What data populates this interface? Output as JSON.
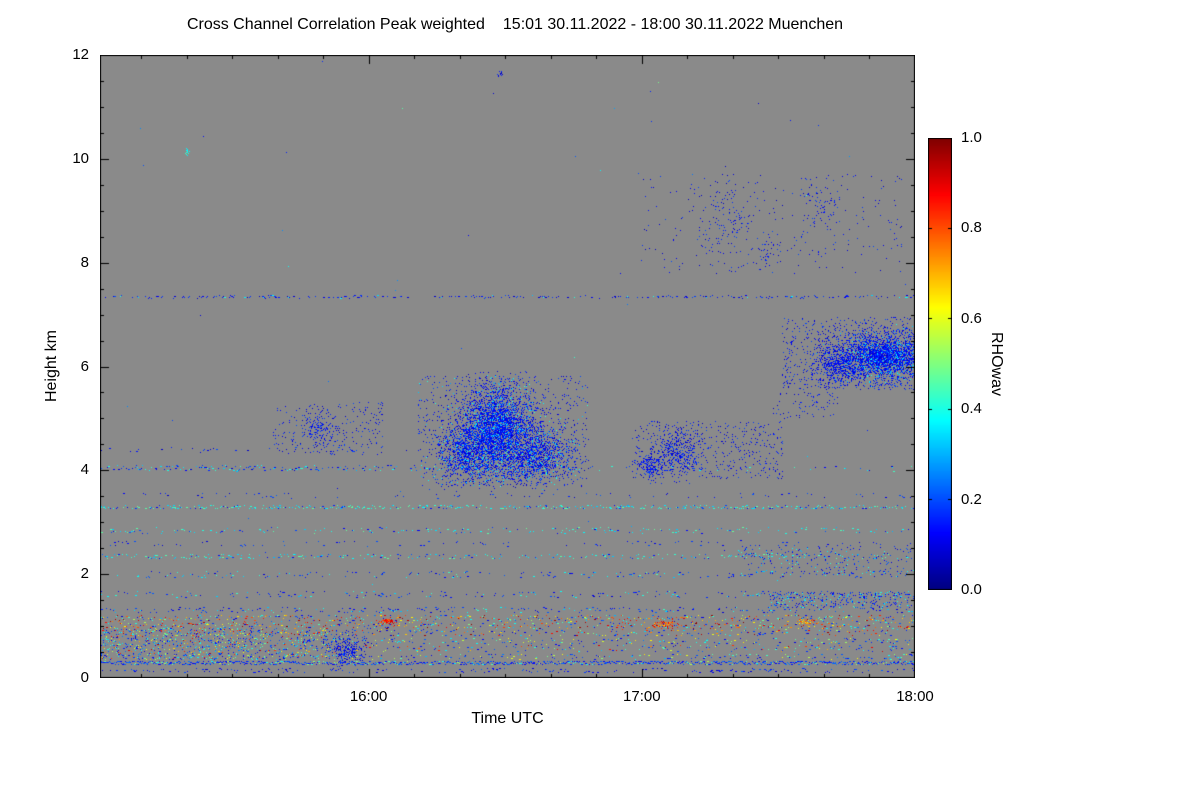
{
  "chart_data": {
    "type": "heatmap",
    "title": "Cross Channel Correlation Peak weighted",
    "subtitle": "15:01 30.11.2022 - 18:00 30.11.2022 Muenchen",
    "xlabel": "Time UTC",
    "ylabel": "Height km",
    "colorbar_label": "RHOwav",
    "colormap": "jet",
    "background_color": "#8a8a8a",
    "time_start": "15:01",
    "time_end": "18:00",
    "x_total_minutes": 179,
    "x_major_ticks": [
      {
        "label": "16:00",
        "minute": 59
      },
      {
        "label": "17:00",
        "minute": 119
      },
      {
        "label": "18:00",
        "minute": 179
      }
    ],
    "x_minor_step_minutes": 10,
    "y_min_km": 0,
    "y_max_km": 12,
    "y_major_ticks": [
      0,
      2,
      4,
      6,
      8,
      10,
      12
    ],
    "y_minor_step_km": 0.5,
    "colorbar_min": 0.0,
    "colorbar_max": 1.0,
    "colorbar_ticks": [
      {
        "label": "1.0",
        "value": 1.0
      },
      {
        "label": "0.8",
        "value": 0.8
      },
      {
        "label": "0.6",
        "value": 0.6
      },
      {
        "label": "0.4",
        "value": 0.4
      },
      {
        "label": "0.2",
        "value": 0.2
      },
      {
        "label": "0.0",
        "value": 0.0
      }
    ],
    "seed": 1337,
    "speckle": {
      "density": 0.00012,
      "values": [
        [
          0.08,
          0.3,
          0.8
        ],
        [
          0.3,
          0.5,
          0.2
        ]
      ]
    },
    "streaks": [
      {
        "h": 0.15,
        "jitter": 0.04,
        "density": 0.22,
        "values": [
          [
            0.07,
            0.22,
            1
          ]
        ]
      },
      {
        "h": 0.3,
        "jitter": 0.035,
        "density": 0.95,
        "values": [
          [
            0.1,
            0.25,
            0.85
          ],
          [
            0.35,
            0.55,
            0.15
          ]
        ]
      },
      {
        "h": 0.42,
        "jitter": 0.05,
        "density": 0.3,
        "values": [
          [
            0.08,
            0.25,
            0.5
          ],
          [
            0.3,
            0.5,
            0.3
          ],
          [
            0.5,
            0.65,
            0.2
          ]
        ]
      },
      {
        "h": 0.58,
        "jitter": 0.07,
        "density": 0.3,
        "values": [
          [
            0.08,
            0.25,
            0.55
          ],
          [
            0.3,
            0.5,
            0.2
          ],
          [
            0.55,
            0.95,
            0.25
          ]
        ]
      },
      {
        "h": 0.72,
        "jitter": 0.06,
        "density": 0.33,
        "values": [
          [
            0.08,
            0.25,
            0.5
          ],
          [
            0.3,
            0.5,
            0.3
          ],
          [
            0.5,
            0.65,
            0.2
          ]
        ]
      },
      {
        "h": 0.88,
        "jitter": 0.06,
        "density": 0.38,
        "values": [
          [
            0.08,
            0.25,
            0.45
          ],
          [
            0.3,
            0.55,
            0.25
          ],
          [
            0.6,
            0.98,
            0.3
          ]
        ]
      },
      {
        "h": 1.02,
        "jitter": 0.06,
        "density": 0.55,
        "values": [
          [
            0.62,
            1.0,
            0.5
          ],
          [
            0.08,
            0.25,
            0.25
          ],
          [
            0.3,
            0.55,
            0.25
          ]
        ]
      },
      {
        "h": 1.16,
        "jitter": 0.06,
        "density": 0.5,
        "values": [
          [
            0.62,
            1.0,
            0.45
          ],
          [
            0.08,
            0.25,
            0.3
          ],
          [
            0.3,
            0.55,
            0.25
          ]
        ]
      },
      {
        "h": 1.32,
        "jitter": 0.05,
        "density": 0.28,
        "values": [
          [
            0.08,
            0.22,
            0.7
          ],
          [
            0.3,
            0.45,
            0.3
          ]
        ]
      },
      {
        "h": 1.62,
        "jitter": 0.06,
        "density": 0.26,
        "values": [
          [
            0.08,
            0.22,
            0.7
          ],
          [
            0.3,
            0.45,
            0.3
          ]
        ]
      },
      {
        "h": 2.0,
        "jitter": 0.06,
        "density": 0.2,
        "values": [
          [
            0.08,
            0.22,
            0.7
          ],
          [
            0.3,
            0.45,
            0.3
          ]
        ]
      },
      {
        "h": 2.35,
        "jitter": 0.045,
        "density": 0.3,
        "values": [
          [
            0.3,
            0.48,
            0.8
          ],
          [
            0.1,
            0.22,
            0.2
          ]
        ]
      },
      {
        "h": 2.6,
        "jitter": 0.05,
        "density": 0.1,
        "values": [
          [
            0.07,
            0.22,
            1
          ]
        ]
      },
      {
        "h": 2.85,
        "jitter": 0.055,
        "density": 0.26,
        "values": [
          [
            0.3,
            0.48,
            0.75
          ],
          [
            0.1,
            0.22,
            0.25
          ]
        ]
      },
      {
        "h": 3.3,
        "jitter": 0.035,
        "density": 0.5,
        "values": [
          [
            0.3,
            0.48,
            0.8
          ],
          [
            0.1,
            0.22,
            0.2
          ]
        ]
      },
      {
        "h": 3.52,
        "jitter": 0.05,
        "density": 0.1,
        "values": [
          [
            0.07,
            0.22,
            1
          ]
        ]
      },
      {
        "h": 4.05,
        "jitter": 0.055,
        "density": 0.45,
        "t1": 74,
        "values": [
          [
            0.08,
            0.22,
            0.65
          ],
          [
            0.3,
            0.45,
            0.35
          ]
        ]
      },
      {
        "h": 4.05,
        "jitter": 0.055,
        "density": 0.1,
        "t0": 74,
        "values": [
          [
            0.08,
            0.22,
            0.7
          ],
          [
            0.3,
            0.45,
            0.3
          ]
        ]
      },
      {
        "h": 4.4,
        "jitter": 0.05,
        "density": 0.12,
        "t1": 60,
        "values": [
          [
            0.07,
            0.22,
            1
          ]
        ]
      },
      {
        "h": 7.35,
        "jitter": 0.025,
        "density": 0.28,
        "values": [
          [
            0.07,
            0.2,
            0.9
          ],
          [
            0.3,
            0.42,
            0.1
          ]
        ]
      }
    ],
    "blobs": [
      {
        "shape": "ellipse",
        "t": 87,
        "h": 4.8,
        "rt": 8,
        "rh": 0.8,
        "density": 0.85,
        "values": [
          [
            0.06,
            0.2,
            0.88
          ],
          [
            0.28,
            0.42,
            0.12
          ]
        ]
      },
      {
        "shape": "ellipse",
        "t": 95,
        "h": 4.3,
        "rt": 9,
        "rh": 0.5,
        "density": 0.6,
        "values": [
          [
            0.06,
            0.2,
            0.88
          ],
          [
            0.28,
            0.42,
            0.12
          ]
        ]
      },
      {
        "shape": "ellipse",
        "t": 80,
        "h": 4.35,
        "rt": 6,
        "rh": 0.55,
        "density": 0.55,
        "values": [
          [
            0.06,
            0.2,
            0.9
          ],
          [
            0.28,
            0.42,
            0.1
          ]
        ]
      },
      {
        "shape": "rect",
        "t0": 70,
        "t1": 107,
        "h0": 3.7,
        "h1": 5.8,
        "density": 0.045,
        "values": [
          [
            0.06,
            0.2,
            0.9
          ],
          [
            0.28,
            0.42,
            0.1
          ]
        ]
      },
      {
        "shape": "rect",
        "t0": 38,
        "t1": 62,
        "h0": 4.3,
        "h1": 5.3,
        "density": 0.04,
        "values": [
          [
            0.06,
            0.2,
            1
          ]
        ]
      },
      {
        "shape": "ellipse",
        "t": 48,
        "h": 4.8,
        "rt": 3,
        "rh": 0.3,
        "density": 0.3,
        "values": [
          [
            0.06,
            0.2,
            1
          ]
        ]
      },
      {
        "shape": "rect",
        "t0": 117,
        "t1": 150,
        "h0": 3.85,
        "h1": 4.95,
        "density": 0.05,
        "values": [
          [
            0.06,
            0.2,
            1
          ]
        ]
      },
      {
        "shape": "ellipse",
        "t": 127,
        "h": 4.35,
        "rt": 5,
        "rh": 0.45,
        "density": 0.35,
        "values": [
          [
            0.06,
            0.2,
            1
          ]
        ]
      },
      {
        "shape": "ellipse",
        "t": 121,
        "h": 4.1,
        "rt": 2.5,
        "rh": 0.25,
        "density": 0.55,
        "values": [
          [
            0.06,
            0.2,
            1
          ]
        ]
      },
      {
        "shape": "ellipse",
        "t": 172,
        "h": 6.2,
        "rt": 11,
        "rh": 0.45,
        "density": 0.92,
        "values": [
          [
            0.06,
            0.2,
            0.85
          ],
          [
            0.25,
            0.4,
            0.15
          ]
        ]
      },
      {
        "shape": "ellipse",
        "t": 162,
        "h": 6.05,
        "rt": 5,
        "rh": 0.33,
        "density": 0.5,
        "values": [
          [
            0.06,
            0.2,
            1
          ]
        ]
      },
      {
        "shape": "rect",
        "t0": 150,
        "t1": 179,
        "h0": 5.55,
        "h1": 6.95,
        "density": 0.07,
        "values": [
          [
            0.06,
            0.2,
            1
          ]
        ]
      },
      {
        "shape": "rect",
        "t0": 148,
        "t1": 162,
        "h0": 5.0,
        "h1": 5.5,
        "density": 0.04,
        "values": [
          [
            0.06,
            0.2,
            1
          ]
        ]
      },
      {
        "shape": "rect",
        "t0": 119,
        "t1": 176,
        "h0": 7.8,
        "h1": 9.7,
        "density": 0.012,
        "values": [
          [
            0.06,
            0.2,
            1
          ]
        ]
      },
      {
        "shape": "ellipse",
        "t": 137,
        "h": 8.8,
        "rt": 5,
        "rh": 0.8,
        "density": 0.06,
        "values": [
          [
            0.06,
            0.2,
            1
          ]
        ]
      },
      {
        "shape": "ellipse",
        "t": 158,
        "h": 9.1,
        "rt": 4,
        "rh": 0.4,
        "density": 0.08,
        "values": [
          [
            0.06,
            0.2,
            1
          ]
        ]
      },
      {
        "shape": "ellipse",
        "t": 146,
        "h": 8.2,
        "rt": 3,
        "rh": 0.3,
        "density": 0.09,
        "values": [
          [
            0.06,
            0.2,
            1
          ]
        ]
      },
      {
        "shape": "rect",
        "t0": 140,
        "t1": 179,
        "h0": 2.0,
        "h1": 2.55,
        "density": 0.05,
        "values": [
          [
            0.08,
            0.22,
            0.7
          ],
          [
            0.3,
            0.45,
            0.3
          ]
        ]
      },
      {
        "shape": "rect",
        "t0": 147,
        "t1": 179,
        "h0": 1.35,
        "h1": 1.65,
        "density": 0.15,
        "values": [
          [
            0.08,
            0.22,
            0.7
          ],
          [
            0.3,
            0.45,
            0.3
          ]
        ]
      },
      {
        "shape": "rect",
        "t0": 0,
        "t1": 52,
        "h0": 0.35,
        "h1": 0.95,
        "density": 0.1,
        "values": [
          [
            0.08,
            0.28,
            0.5
          ],
          [
            0.3,
            0.55,
            0.3
          ],
          [
            0.6,
            0.95,
            0.2
          ]
        ]
      },
      {
        "shape": "ellipse",
        "t": 54,
        "h": 0.55,
        "rt": 4,
        "rh": 0.28,
        "density": 0.5,
        "values": [
          [
            0.06,
            0.2,
            1
          ]
        ]
      },
      {
        "shape": "ellipse",
        "t": 63,
        "h": 1.1,
        "rt": 2,
        "rh": 0.08,
        "density": 0.8,
        "values": [
          [
            0.75,
            0.95,
            1
          ]
        ]
      },
      {
        "shape": "ellipse",
        "t": 124,
        "h": 1.05,
        "rt": 3,
        "rh": 0.08,
        "density": 0.7,
        "values": [
          [
            0.7,
            0.95,
            1
          ]
        ]
      },
      {
        "shape": "ellipse",
        "t": 155,
        "h": 1.1,
        "rt": 2,
        "rh": 0.07,
        "density": 0.6,
        "values": [
          [
            0.6,
            0.85,
            1
          ]
        ]
      },
      {
        "shape": "ellipse",
        "t": 88,
        "h": 11.65,
        "rt": 0.6,
        "rh": 0.07,
        "density": 0.6,
        "values": [
          [
            0.06,
            0.18,
            1
          ]
        ]
      },
      {
        "shape": "ellipse",
        "t": 19,
        "h": 10.15,
        "rt": 0.4,
        "rh": 0.06,
        "density": 0.8,
        "values": [
          [
            0.35,
            0.45,
            1
          ]
        ]
      }
    ]
  }
}
